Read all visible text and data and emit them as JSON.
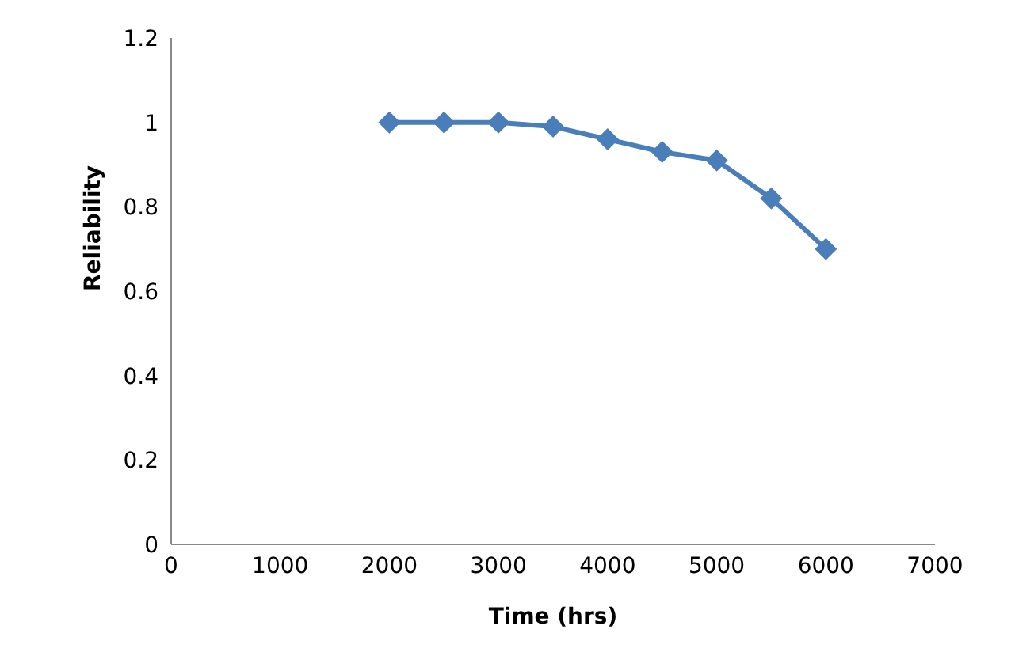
{
  "chart_data": {
    "type": "line",
    "xlabel": "Time (hrs)",
    "ylabel": "Reliability",
    "x": [
      2000,
      2500,
      3000,
      3500,
      4000,
      4500,
      5000,
      5500,
      6000
    ],
    "series": [
      {
        "color": "#4a7ebb",
        "values": [
          1,
          1,
          1,
          0.99,
          0.96,
          0.93,
          0.91,
          0.82,
          0.7
        ]
      }
    ],
    "xlim": [
      0,
      7000
    ],
    "xticks": [
      0,
      1000,
      2000,
      3000,
      4000,
      5000,
      6000,
      7000
    ],
    "ylim": [
      0,
      1.2
    ],
    "yticks": [
      0,
      0.2,
      0.4,
      0.6,
      0.8,
      1,
      1.2
    ],
    "grid": false,
    "legend": false,
    "marker": "diamond",
    "line_style": "solid"
  }
}
